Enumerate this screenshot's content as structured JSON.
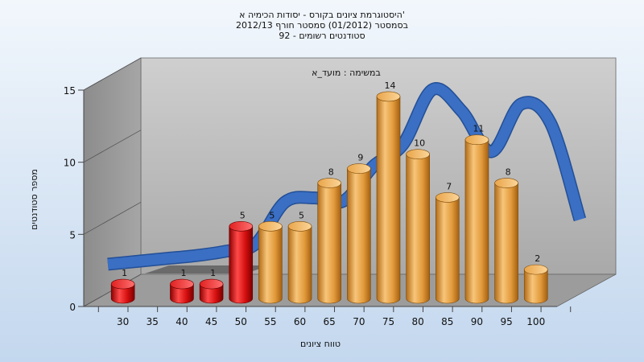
{
  "chart_data": {
    "type": "bar",
    "title": [
      "היסטוגרמת ציונים בקורס - יסודות הכימיה א'",
      "בסמסטר  (01/2012)  סמסטר חורף 2012/13",
      "סטודנטים רשומים - 92"
    ],
    "subtitle": "במשימה : מועד_א",
    "xlabel": "טווח ציונים",
    "ylabel": "מספר סטודנטים",
    "ylim": [
      0,
      15
    ],
    "yticks": [
      "0",
      "5",
      "10",
      "15"
    ],
    "x_ticks": [
      "30",
      "35",
      "40",
      "45",
      "50",
      "55",
      "60",
      "65",
      "70",
      "75",
      "80",
      "85",
      "90",
      "95",
      "100"
    ],
    "bars": [
      {
        "x": 30,
        "value": 1,
        "color": "#d61616"
      },
      {
        "x": 40,
        "value": 1,
        "color": "#d61616"
      },
      {
        "x": 45,
        "value": 1,
        "color": "#d61616"
      },
      {
        "x": 50,
        "value": 5,
        "color": "#d61616"
      },
      {
        "x": 55,
        "value": 5,
        "color": "#e8a444"
      },
      {
        "x": 60,
        "value": 5,
        "color": "#e8a444"
      },
      {
        "x": 65,
        "value": 8,
        "color": "#e8a444"
      },
      {
        "x": 70,
        "value": 9,
        "color": "#e8a444"
      },
      {
        "x": 75,
        "value": 14,
        "color": "#e8a444"
      },
      {
        "x": 80,
        "value": 10,
        "color": "#e8a444"
      },
      {
        "x": 85,
        "value": 7,
        "color": "#e8a444"
      },
      {
        "x": 90,
        "value": 11,
        "color": "#e8a444"
      },
      {
        "x": 95,
        "value": 8,
        "color": "#e8a444"
      },
      {
        "x": 100,
        "value": 2,
        "color": "#e8a444"
      }
    ],
    "labels": [
      "1",
      "1",
      "1",
      "5",
      "5",
      "5",
      "8",
      "9",
      "14",
      "10",
      "7",
      "11",
      "8",
      "2"
    ],
    "curve": {
      "color": "#3a6fc4",
      "x": [
        25,
        30,
        35,
        40,
        45,
        50,
        55,
        60,
        65,
        70,
        75,
        80,
        85,
        90,
        95,
        100,
        105
      ],
      "y": [
        0.7,
        0.9,
        1.1,
        1.3,
        1.6,
        2.1,
        5.0,
        5.3,
        5.1,
        7.5,
        9.0,
        12.8,
        11.3,
        8.5,
        11.8,
        10.5,
        3.8
      ]
    },
    "grid": false,
    "legend": "none"
  }
}
